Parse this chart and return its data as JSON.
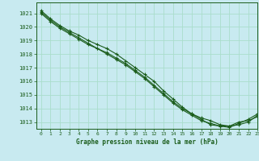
{
  "background_color": "#c8eaf0",
  "grid_color": "#aaddcc",
  "line_color": "#1a5c1a",
  "marker_color": "#1a5c1a",
  "title": "Graphe pression niveau de la mer (hPa)",
  "xlim": [
    -0.5,
    23
  ],
  "ylim": [
    1012.5,
    1021.8
  ],
  "yticks": [
    1013,
    1014,
    1015,
    1016,
    1017,
    1018,
    1019,
    1020,
    1021
  ],
  "xticks": [
    0,
    1,
    2,
    3,
    4,
    5,
    6,
    7,
    8,
    9,
    10,
    11,
    12,
    13,
    14,
    15,
    16,
    17,
    18,
    19,
    20,
    21,
    22,
    23
  ],
  "series": [
    [
      1021.2,
      1020.6,
      1020.1,
      1019.7,
      1019.4,
      1019.0,
      1018.7,
      1018.4,
      1018.0,
      1017.5,
      1017.0,
      1016.5,
      1016.0,
      1015.3,
      1014.7,
      1014.1,
      1013.6,
      1013.2,
      1012.8,
      1012.7,
      1012.7,
      1013.0,
      1013.1,
      1013.4
    ],
    [
      1021.1,
      1020.5,
      1020.0,
      1019.6,
      1019.2,
      1018.8,
      1018.4,
      1018.1,
      1017.7,
      1017.3,
      1016.8,
      1016.3,
      1015.7,
      1015.1,
      1014.5,
      1014.0,
      1013.6,
      1013.3,
      1013.1,
      1012.8,
      1012.7,
      1012.8,
      1013.0,
      1013.5
    ],
    [
      1021.0,
      1020.4,
      1019.9,
      1019.5,
      1019.1,
      1018.7,
      1018.4,
      1018.0,
      1017.6,
      1017.2,
      1016.7,
      1016.2,
      1015.6,
      1015.0,
      1014.4,
      1013.9,
      1013.5,
      1013.1,
      1012.9,
      1012.7,
      1012.6,
      1012.9,
      1013.2,
      1013.6
    ]
  ]
}
